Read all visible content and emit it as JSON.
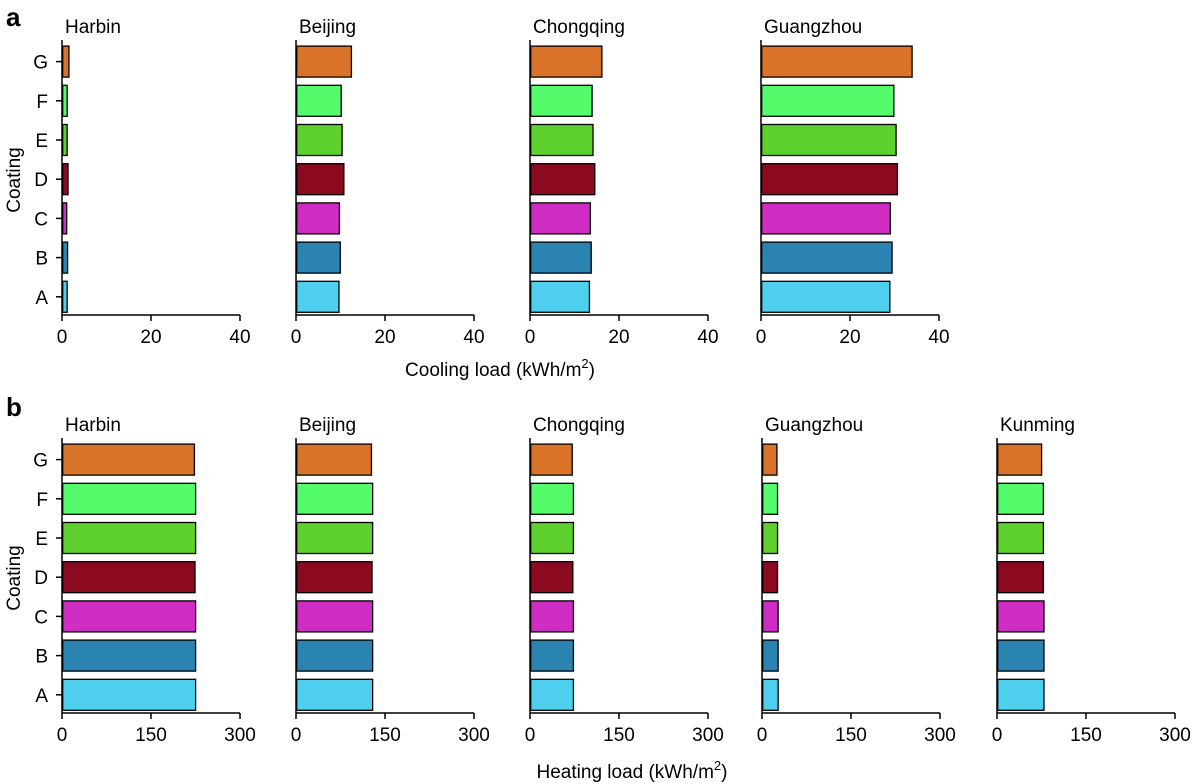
{
  "chart_data": [
    {
      "panel": "a",
      "type": "bar",
      "orientation": "horizontal",
      "xlabel": "Cooling load (kWh/m",
      "xlabel_sup": "2",
      "xlabel_close": ")",
      "ylabel": "Coating",
      "xlim": [
        0,
        40
      ],
      "xticks": [
        0,
        20,
        40
      ],
      "categories": [
        "A",
        "B",
        "C",
        "D",
        "E",
        "F",
        "G"
      ],
      "colors": {
        "A": "#4fcfee",
        "B": "#2a83b0",
        "C": "#cf2cc3",
        "D": "#8b0a20",
        "E": "#5fd12f",
        "F": "#54fb6a",
        "G": "#d9732a"
      },
      "subplots": [
        {
          "city": "Harbin",
          "values": [
            1.0,
            1.1,
            0.9,
            1.2,
            1.0,
            1.0,
            1.4
          ]
        },
        {
          "city": "Beijing",
          "values": [
            9.5,
            9.8,
            9.6,
            10.6,
            10.2,
            10.0,
            12.3
          ]
        },
        {
          "city": "Chongqing",
          "values": [
            13.2,
            13.6,
            13.4,
            14.4,
            14.0,
            13.8,
            16.0
          ]
        },
        {
          "city": "Guangzhou",
          "values": [
            28.8,
            29.3,
            28.9,
            30.5,
            30.2,
            29.7,
            33.8
          ]
        }
      ]
    },
    {
      "panel": "b",
      "type": "bar",
      "orientation": "horizontal",
      "xlabel": "Heating load (kWh/m",
      "xlabel_sup": "2",
      "xlabel_close": ")",
      "ylabel": "Coating",
      "xlim": [
        0,
        300
      ],
      "xticks": [
        0,
        150,
        300
      ],
      "categories": [
        "A",
        "B",
        "C",
        "D",
        "E",
        "F",
        "G"
      ],
      "colors": {
        "A": "#4fcfee",
        "B": "#2a83b0",
        "C": "#cf2cc3",
        "D": "#8b0a20",
        "E": "#5fd12f",
        "F": "#54fb6a",
        "G": "#d9732a"
      },
      "subplots": [
        {
          "city": "Harbin",
          "values": [
            224,
            224,
            224,
            223,
            224,
            224,
            222
          ]
        },
        {
          "city": "Beijing",
          "values": [
            128,
            128,
            128,
            127,
            128,
            128,
            126
          ]
        },
        {
          "city": "Chongqing",
          "values": [
            72,
            72,
            72,
            71,
            72,
            72,
            70
          ]
        },
        {
          "city": "Guangzhou",
          "values": [
            26,
            26,
            26,
            25,
            25,
            25,
            24
          ]
        },
        {
          "city": "Kunming",
          "values": [
            78,
            78,
            78,
            77,
            77,
            77,
            74
          ]
        }
      ]
    }
  ]
}
